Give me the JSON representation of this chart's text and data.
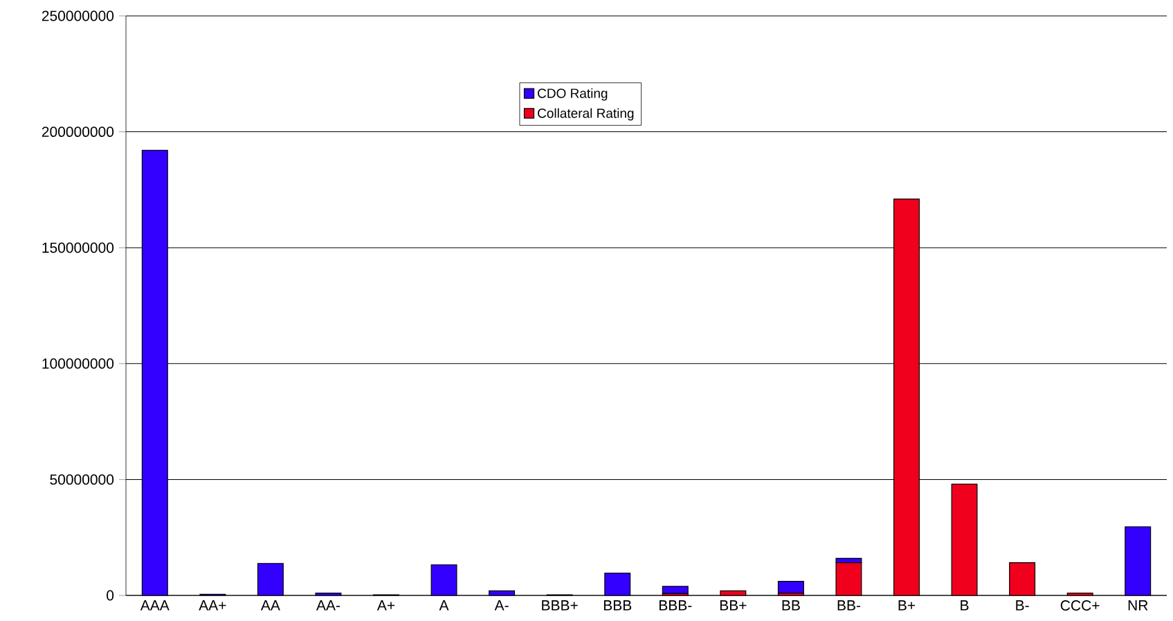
{
  "chart_data": {
    "type": "bar",
    "stacked": true,
    "categories": [
      "AAA",
      "AA+",
      "AA",
      "AA-",
      "A+",
      "A",
      "A-",
      "BBB+",
      "BBB",
      "BBB-",
      "BB+",
      "BB",
      "BB-",
      "B+",
      "B",
      "B-",
      "CCC+",
      "NR"
    ],
    "series": [
      {
        "name": "Collateral Rating",
        "color": "#f0001c",
        "values": [
          0,
          0,
          0,
          0,
          0,
          0,
          0,
          0,
          0,
          800000,
          2000000,
          1000000,
          14100000,
          171000000,
          48000000,
          14100000,
          1000000,
          0
        ]
      },
      {
        "name": "CDO Rating",
        "color": "#3300ff",
        "values": [
          192000000,
          500000,
          13800000,
          1000000,
          300000,
          13200000,
          2000000,
          300000,
          9600000,
          3100000,
          0,
          5100000,
          1900000,
          0,
          0,
          0,
          0,
          29600000
        ]
      }
    ],
    "ylim": [
      0,
      250000000
    ],
    "yticks": [
      0,
      50000000,
      100000000,
      150000000,
      200000000,
      250000000
    ],
    "grid": "y",
    "legend": "top"
  }
}
